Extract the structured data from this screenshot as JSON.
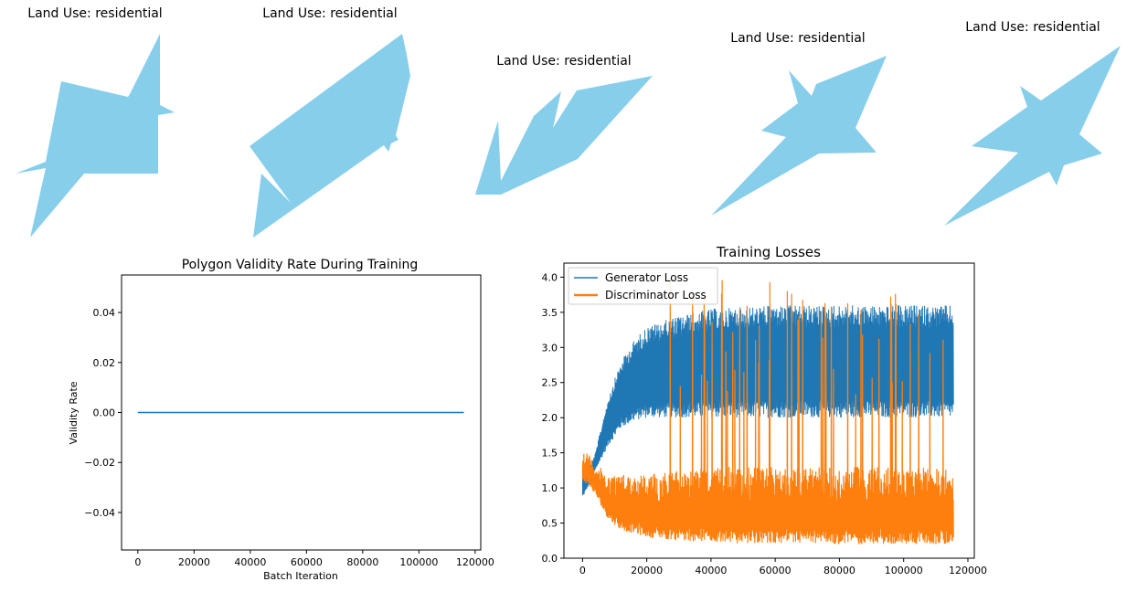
{
  "polygon_panels": [
    {
      "title": "Land Use: residential",
      "shape": "polygon-shape-1"
    },
    {
      "title": "Land Use: residential",
      "shape": "polygon-shape-2"
    },
    {
      "title": "Land Use: residential",
      "shape": "polygon-shape-3"
    },
    {
      "title": "Land Use: residential",
      "shape": "polygon-shape-4"
    },
    {
      "title": "Land Use: residential",
      "shape": "polygon-shape-5"
    }
  ],
  "polygon_color": "#87CEEB",
  "chart_data": [
    {
      "type": "line",
      "title": "Polygon Validity Rate During Training",
      "xlabel": "Batch Iteration",
      "ylabel": "Validity Rate",
      "xlim": [
        -5800,
        122000
      ],
      "ylim": [
        -0.055,
        0.055
      ],
      "xticks": [
        0,
        20000,
        40000,
        60000,
        80000,
        100000,
        120000
      ],
      "xtick_labels": [
        "0",
        "20000",
        "40000",
        "60000",
        "80000",
        "100000",
        "120000"
      ],
      "yticks": [
        0.04,
        0.02,
        0.0,
        -0.02,
        -0.04
      ],
      "ytick_labels": [
        "0.04",
        "0.02",
        "0.00",
        "−0.02",
        "−0.04"
      ],
      "grid": false,
      "series": [
        {
          "color": "#1f77b4",
          "x": [
            0,
            116000
          ],
          "y": [
            0,
            0
          ]
        }
      ]
    },
    {
      "type": "line",
      "title": "Training Losses",
      "xlabel": "",
      "ylabel": "",
      "xlim": [
        -5800,
        122000
      ],
      "ylim": [
        0,
        4.2
      ],
      "xticks": [
        0,
        20000,
        40000,
        60000,
        80000,
        100000,
        120000
      ],
      "xtick_labels": [
        "0",
        "20000",
        "40000",
        "60000",
        "80000",
        "100000",
        "120000"
      ],
      "yticks": [
        0,
        0.5,
        1.0,
        1.5,
        2.0,
        2.5,
        3.0,
        3.5,
        4.0
      ],
      "ytick_labels": [
        "0.0",
        "0.5",
        "1.0",
        "1.5",
        "2.0",
        "2.5",
        "3.0",
        "3.5",
        "4.0"
      ],
      "grid": false,
      "legend_position": "top-left",
      "series": [
        {
          "name": "Generator Loss",
          "color": "#1f77b4",
          "envelope_x": [
            0,
            1500,
            4000,
            8000,
            12000,
            16000,
            20000,
            30000,
            40000,
            60000,
            80000,
            100000,
            115500
          ],
          "envelope_low": [
            0.85,
            1.0,
            1.25,
            1.6,
            1.85,
            1.95,
            2.0,
            2.0,
            2.0,
            2.0,
            2.0,
            2.0,
            2.0
          ],
          "envelope_high": [
            1.3,
            1.2,
            1.5,
            2.3,
            2.8,
            3.1,
            3.3,
            3.45,
            3.55,
            3.6,
            3.6,
            3.6,
            3.6
          ]
        },
        {
          "name": "Discriminator Loss",
          "color": "#ff7f0e",
          "envelope_x": [
            0,
            1500,
            4000,
            8000,
            12000,
            20000,
            30000,
            40000,
            60000,
            80000,
            100000,
            115500
          ],
          "envelope_low": [
            1.1,
            1.05,
            0.9,
            0.55,
            0.4,
            0.3,
            0.25,
            0.22,
            0.2,
            0.2,
            0.2,
            0.2
          ],
          "envelope_high": [
            1.55,
            1.5,
            1.35,
            1.2,
            1.2,
            1.2,
            1.25,
            1.3,
            1.3,
            1.3,
            1.3,
            1.3
          ],
          "spike_range": [
            25000,
            115500
          ],
          "spike_max": 4.0
        }
      ]
    }
  ]
}
